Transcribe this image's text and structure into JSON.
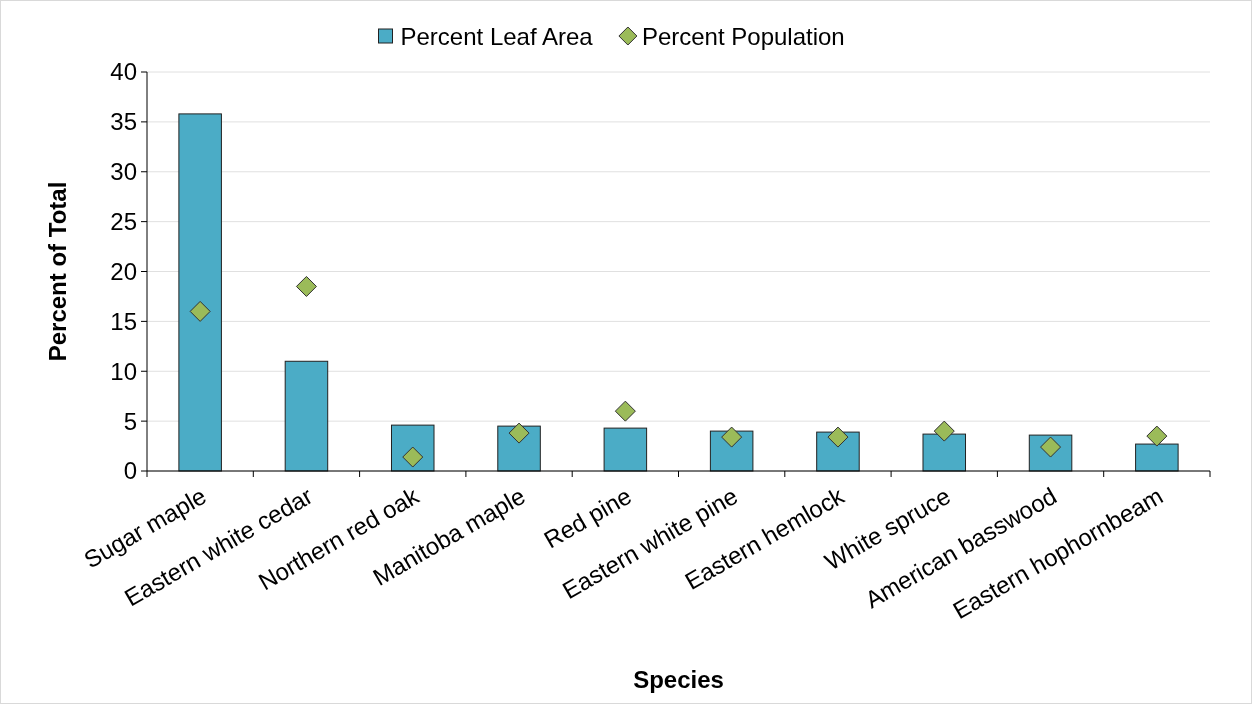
{
  "chart_data": {
    "type": "bar",
    "xlabel": "Species",
    "ylabel": "Percent of Total",
    "categories": [
      "Sugar maple",
      "Eastern white cedar",
      "Northern red oak",
      "Manitoba maple",
      "Red pine",
      "Eastern white pine",
      "Eastern hemlock",
      "White spruce",
      "American basswood",
      "Eastern hophornbeam"
    ],
    "series": [
      {
        "name": "Percent Leaf Area",
        "color": "#4bacc6",
        "values": [
          35.8,
          11.0,
          4.6,
          4.5,
          4.3,
          4.0,
          3.9,
          3.7,
          3.6,
          2.7
        ]
      },
      {
        "name": "Percent Population",
        "type": "scatter",
        "color": "#9bbb59",
        "marker": "diamond",
        "values": [
          16.0,
          18.5,
          1.4,
          3.8,
          6.0,
          3.4,
          3.4,
          4.0,
          2.4,
          3.5
        ]
      }
    ],
    "ylim": [
      0,
      40
    ],
    "yticks": [
      0,
      5,
      10,
      15,
      20,
      25,
      30,
      35,
      40
    ],
    "grid": "y",
    "legend": "top"
  }
}
